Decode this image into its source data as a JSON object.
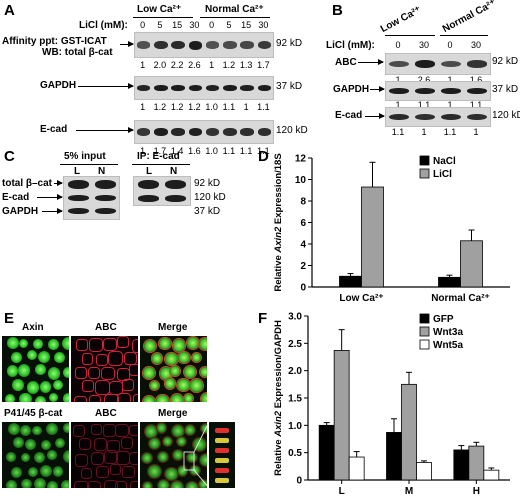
{
  "panels": {
    "A": "A",
    "B": "B",
    "C": "C",
    "D": "D",
    "E": "E",
    "F": "F"
  },
  "panelA": {
    "condition_low": "Low Ca²⁺",
    "condition_normal": "Normal Ca²⁺",
    "licl_label": "LiCl (mM):",
    "concentrations": [
      "0",
      "5",
      "15",
      "30",
      "0",
      "5",
      "15",
      "30"
    ],
    "affinity_line1": "Affinity ppt: GST-ICAT",
    "affinity_line2": "WB: total β-cat",
    "row_labels": [
      "GAPDH",
      "E-cad"
    ],
    "sizes": [
      "92 kD",
      "37 kD",
      "120 kD"
    ],
    "quant_beta": [
      "1",
      "2.0",
      "2.2",
      "2.6",
      "1",
      "1.2",
      "1.3",
      "1.7"
    ],
    "quant_gapdh": [
      "1",
      "1.2",
      "1.2",
      "1.2",
      "1.0",
      "1.1",
      "1",
      "1.1"
    ],
    "quant_ecad": [
      "1",
      "1.7",
      "1.4",
      "1.6",
      "1.0",
      "1.1",
      "1.1",
      "1.1"
    ]
  },
  "panelB": {
    "condition_low": "Low Ca²⁺",
    "condition_normal": "Normal Ca²⁺",
    "licl_label": "LiCl (mM):",
    "concentrations": [
      "0",
      "30",
      "0",
      "30"
    ],
    "row_labels": [
      "ABC",
      "GAPDH",
      "E-cad"
    ],
    "sizes": [
      "92 kD",
      "37 kD",
      "120 kD"
    ],
    "quant_abc": [
      "1",
      "2.6",
      "1",
      "1.6"
    ],
    "quant_gapdh": [
      "1",
      "1.1",
      "1",
      "1.1"
    ],
    "quant_ecad": [
      "1.1",
      "1",
      "1.1",
      "1"
    ]
  },
  "panelC": {
    "input_label": "5% input",
    "ip_label": "IP: E-cad",
    "lanes": [
      "L",
      "N",
      "L",
      "N"
    ],
    "row_labels": [
      "total β–cat",
      "E-cad",
      "GAPDH"
    ],
    "sizes": [
      "92 kD",
      "120 kD",
      "37 kD"
    ]
  },
  "chart_data": [
    {
      "type": "bar",
      "ylabel": "Relative Axin2 Expression/18S",
      "ylim": [
        0,
        12
      ],
      "yticks": [
        "0",
        "2",
        "4",
        "6",
        "8",
        "10",
        "12"
      ],
      "categories": [
        "Low Ca²⁺",
        "Normal Ca²⁺"
      ],
      "series": [
        {
          "name": "NaCl",
          "values": [
            1.0,
            0.9
          ],
          "errors": [
            0.25,
            0.2
          ],
          "color": "#000000"
        },
        {
          "name": "LiCl",
          "values": [
            9.3,
            4.3
          ],
          "errors": [
            2.3,
            1.0
          ],
          "color": "#a0a0a0"
        }
      ],
      "legend": "top-right"
    },
    {
      "type": "bar",
      "ylabel": "Relative Axin2 Expression/GAPDH",
      "ylim": [
        0,
        3.0
      ],
      "yticks": [
        "0",
        "0.5",
        "1.0",
        "1.5",
        "2.0",
        "2.5",
        "3.0"
      ],
      "categories": [
        "L",
        "M",
        "H"
      ],
      "series": [
        {
          "name": "GFP",
          "values": [
            1.0,
            0.87,
            0.55
          ],
          "errors": [
            0.05,
            0.25,
            0.08
          ],
          "color": "#000000"
        },
        {
          "name": "Wnt3a",
          "values": [
            2.37,
            1.75,
            0.62
          ],
          "errors": [
            0.38,
            0.22,
            0.07
          ],
          "color": "#a0a0a0"
        },
        {
          "name": "Wnt5a",
          "values": [
            0.42,
            0.32,
            0.18
          ],
          "errors": [
            0.1,
            0.03,
            0.04
          ],
          "color": "#ffffff"
        }
      ],
      "legend": "top-right"
    }
  ],
  "panelE": {
    "row1": [
      "Axin",
      "ABC",
      "Merge"
    ],
    "row2": [
      "P41/45 β-cat",
      "ABC",
      "Merge"
    ]
  }
}
